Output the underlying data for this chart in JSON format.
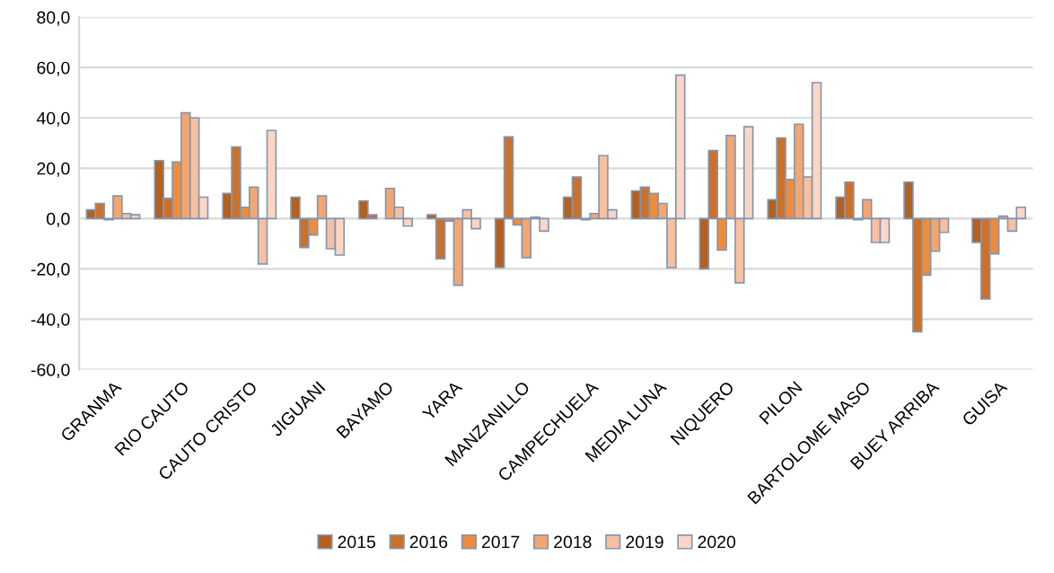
{
  "chart_data": {
    "type": "bar",
    "categories": [
      "GRANMA",
      "RIO CAUTO",
      "CAUTO CRISTO",
      "JIGUANI",
      "BAYAMO",
      "YARA",
      "MANZANILLO",
      "CAMPECHUELA",
      "MEDIA LUNA",
      "NIQUERO",
      "PILON",
      "BARTOLOME MASO",
      "BUEY ARRIBA",
      "GUISA"
    ],
    "series": [
      {
        "name": "2015",
        "color": "#b4601f",
        "values": [
          3.5,
          23,
          10,
          8.5,
          7,
          1.5,
          -19.5,
          8.5,
          11,
          -20,
          7.5,
          8.5,
          14.5,
          -9.5
        ]
      },
      {
        "name": "2016",
        "color": "#cc712b",
        "values": [
          6,
          8,
          28.5,
          -11.5,
          1.5,
          -16,
          32.5,
          16.5,
          12.5,
          27,
          32,
          14.5,
          -45,
          -32
        ]
      },
      {
        "name": "2017",
        "color": "#ed8c3d",
        "values": [
          -0.5,
          22.5,
          4.5,
          -6.5,
          null,
          -1,
          -2.5,
          -0.5,
          10,
          -12.5,
          15.5,
          -0.5,
          -22.5,
          -14
        ]
      },
      {
        "name": "2018",
        "color": "#f3a66f",
        "values": [
          9,
          42,
          12.5,
          9,
          12,
          -26.5,
          -15.5,
          2,
          6,
          33,
          37.5,
          7.5,
          -13,
          1
        ]
      },
      {
        "name": "2019",
        "color": "#f7c0a0",
        "values": [
          2,
          40,
          -18,
          -12,
          4.5,
          3.5,
          0.5,
          25,
          -19.5,
          -25.5,
          16.5,
          -9.5,
          -5.5,
          -5
        ]
      },
      {
        "name": "2020",
        "color": "#fad6c3",
        "values": [
          1.5,
          8.5,
          35,
          -14.5,
          -3,
          -4,
          -5,
          3.5,
          57,
          36.5,
          54,
          -9.5,
          null,
          4.5
        ]
      }
    ],
    "ylim": [
      -60,
      80
    ],
    "yticks": [
      {
        "value": -60,
        "label": "-60,0"
      },
      {
        "value": -40,
        "label": "-40,0"
      },
      {
        "value": -20,
        "label": "-20,0"
      },
      {
        "value": 0,
        "label": "0,0"
      },
      {
        "value": 20,
        "label": "20,0"
      },
      {
        "value": 40,
        "label": "40,0"
      },
      {
        "value": 60,
        "label": "60,0"
      },
      {
        "value": 80,
        "label": "80,0"
      }
    ],
    "grid": "y",
    "legend": "bottom"
  }
}
